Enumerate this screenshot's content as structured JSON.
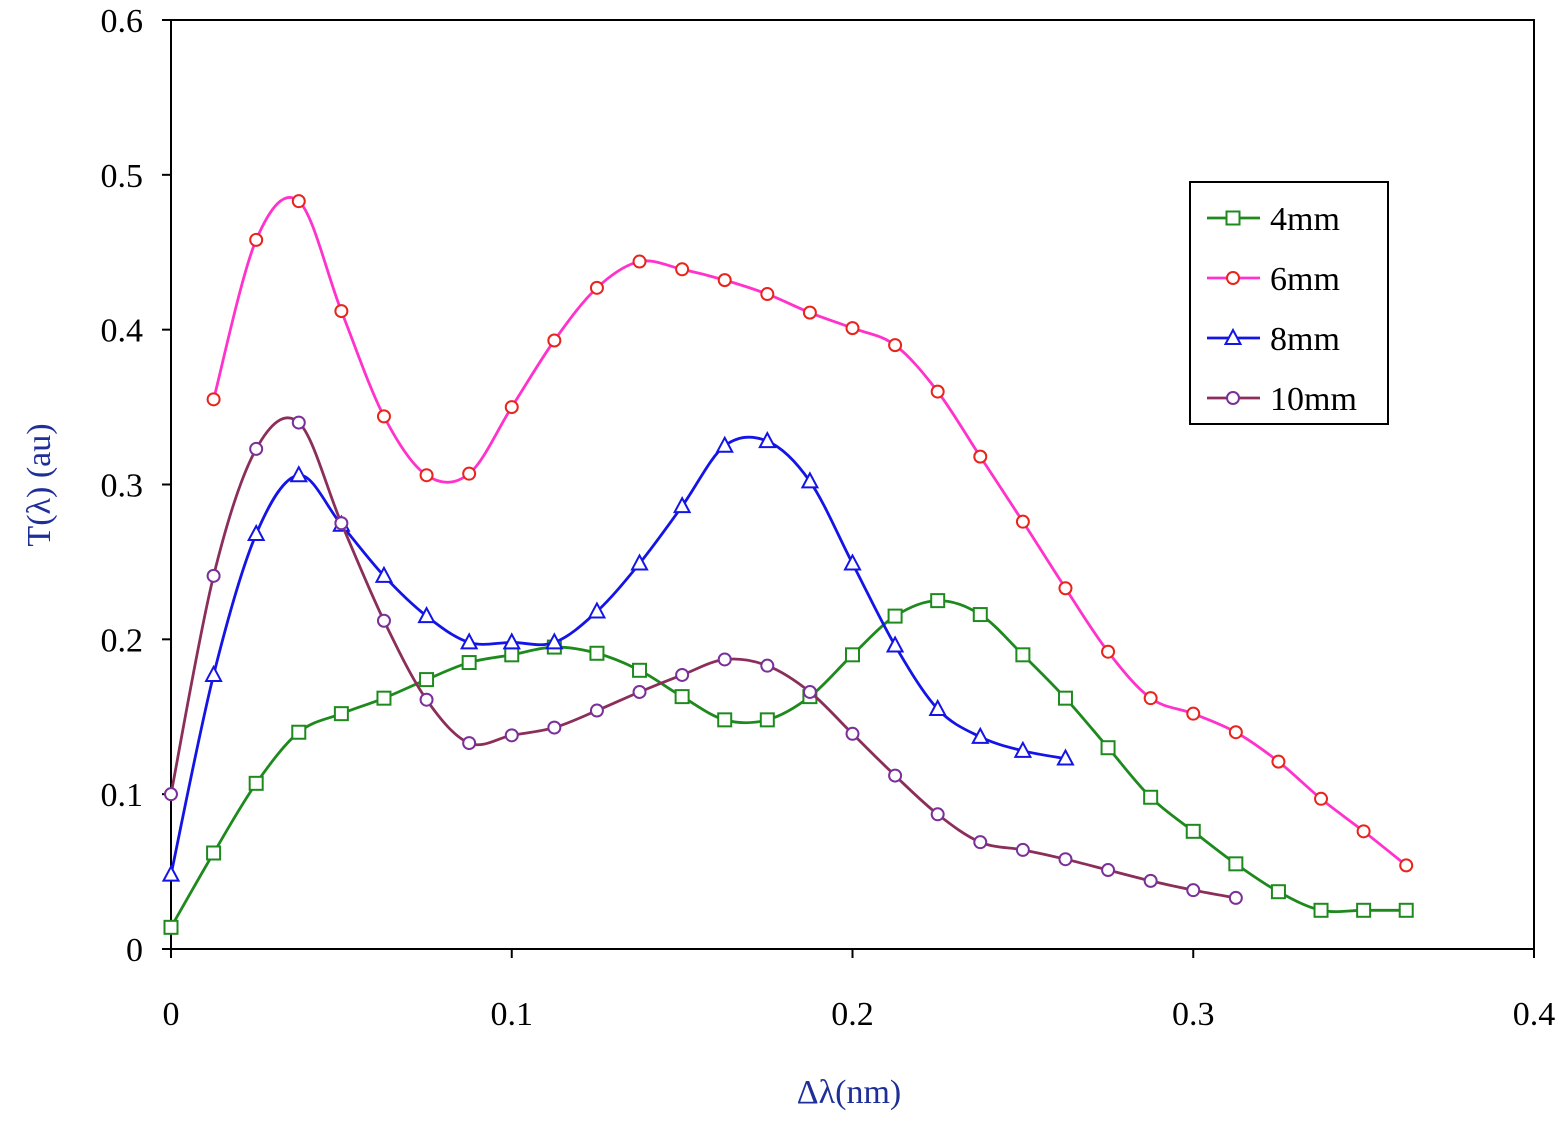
{
  "chart_data": {
    "type": "line",
    "title": "",
    "xlabel": "Δλ(nm)",
    "ylabel": "T(λ) (au)",
    "axis_label_color": "#1f2f9a",
    "xlim": [
      0,
      0.4
    ],
    "ylim": [
      0,
      0.6
    ],
    "x_ticks": [
      0,
      0.1,
      0.2,
      0.3,
      0.4
    ],
    "x_tick_labels": [
      "0",
      "0.1",
      "0.2",
      "0.3",
      "0.4"
    ],
    "y_ticks": [
      0,
      0.1,
      0.2,
      0.3,
      0.4,
      0.5,
      0.6
    ],
    "y_tick_labels": [
      "0",
      "0.1",
      "0.2",
      "0.3",
      "0.4",
      "0.5",
      "0.6"
    ],
    "grid": false,
    "legend_position": "top-right",
    "series": [
      {
        "name": "4mm",
        "color": "#1e8a1e",
        "marker": "square",
        "x": [
          0,
          0.0125,
          0.025,
          0.0375,
          0.05,
          0.0625,
          0.075,
          0.0875,
          0.1,
          0.1125,
          0.125,
          0.1375,
          0.15,
          0.1625,
          0.175,
          0.1875,
          0.2,
          0.2125,
          0.225,
          0.2375,
          0.25,
          0.2625,
          0.275,
          0.2875,
          0.3,
          0.3125,
          0.325,
          0.3375,
          0.35,
          0.3625
        ],
        "y": [
          0.014,
          0.062,
          0.107,
          0.14,
          0.152,
          0.162,
          0.174,
          0.185,
          0.19,
          0.195,
          0.191,
          0.18,
          0.163,
          0.148,
          0.148,
          0.163,
          0.19,
          0.215,
          0.225,
          0.216,
          0.19,
          0.162,
          0.13,
          0.098,
          0.076,
          0.055,
          0.037,
          0.025,
          0.025,
          0.025
        ]
      },
      {
        "name": "6mm",
        "color": "#ff33cc",
        "marker": "circle-red",
        "x": [
          0.0125,
          0.025,
          0.0375,
          0.05,
          0.0625,
          0.075,
          0.0875,
          0.1,
          0.1125,
          0.125,
          0.1375,
          0.15,
          0.1625,
          0.175,
          0.1875,
          0.2,
          0.2125,
          0.225,
          0.2375,
          0.25,
          0.2625,
          0.275,
          0.2875,
          0.3,
          0.3125,
          0.325,
          0.3375,
          0.35,
          0.3625
        ],
        "y": [
          0.355,
          0.458,
          0.483,
          0.412,
          0.344,
          0.306,
          0.307,
          0.35,
          0.393,
          0.427,
          0.444,
          0.439,
          0.432,
          0.423,
          0.411,
          0.401,
          0.39,
          0.36,
          0.318,
          0.276,
          0.233,
          0.192,
          0.162,
          0.152,
          0.14,
          0.121,
          0.097,
          0.076,
          0.054
        ]
      },
      {
        "name": "8mm",
        "color": "#1414e6",
        "marker": "triangle",
        "x": [
          0,
          0.0125,
          0.025,
          0.0375,
          0.05,
          0.0625,
          0.075,
          0.0875,
          0.1,
          0.1125,
          0.125,
          0.1375,
          0.15,
          0.1625,
          0.175,
          0.1875,
          0.2,
          0.2125,
          0.225,
          0.2375,
          0.25,
          0.2625
        ],
        "y": [
          0.048,
          0.177,
          0.268,
          0.306,
          0.274,
          0.241,
          0.215,
          0.198,
          0.198,
          0.198,
          0.218,
          0.249,
          0.286,
          0.325,
          0.328,
          0.302,
          0.249,
          0.196,
          0.155,
          0.137,
          0.128,
          0.123
        ]
      },
      {
        "name": "10mm",
        "color": "#8b2f5a",
        "marker": "circle-purple",
        "x": [
          0,
          0.0125,
          0.025,
          0.0375,
          0.05,
          0.0625,
          0.075,
          0.0875,
          0.1,
          0.1125,
          0.125,
          0.1375,
          0.15,
          0.1625,
          0.175,
          0.1875,
          0.2,
          0.2125,
          0.225,
          0.2375,
          0.25,
          0.2625,
          0.275,
          0.2875,
          0.3,
          0.3125
        ],
        "y": [
          0.1,
          0.241,
          0.323,
          0.34,
          0.275,
          0.212,
          0.161,
          0.133,
          0.138,
          0.143,
          0.154,
          0.166,
          0.177,
          0.187,
          0.183,
          0.166,
          0.139,
          0.112,
          0.087,
          0.069,
          0.064,
          0.058,
          0.051,
          0.044,
          0.038,
          0.033
        ]
      }
    ],
    "marker_styles": {
      "square": {
        "stroke": "#1e8a1e",
        "fill": "#ffffff"
      },
      "circle-red": {
        "stroke": "#e8241c",
        "fill": "#ffffff"
      },
      "triangle": {
        "stroke": "#1414e6",
        "fill": "#ffffff"
      },
      "circle-purple": {
        "stroke": "#7a2f9a",
        "fill": "#ffffff"
      }
    }
  }
}
